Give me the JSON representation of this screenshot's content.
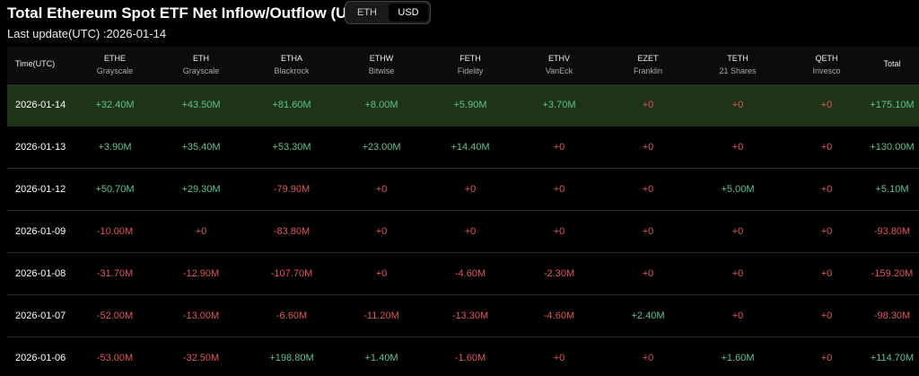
{
  "header": {
    "title": "Total Ethereum Spot ETF Net Inflow/Outflow (USD)",
    "toggle": [
      "ETH",
      "USD"
    ],
    "last_update": "Last update(UTC) :2026-01-14"
  },
  "table": {
    "columns": [
      {
        "ticker": "Time(UTC)"
      },
      {
        "ticker": "ETHE",
        "issuer": "Grayscale"
      },
      {
        "ticker": "ETH",
        "issuer": "Grayscale"
      },
      {
        "ticker": "ETHA",
        "issuer": "Blackrock"
      },
      {
        "ticker": "ETHW",
        "issuer": "Bitwise"
      },
      {
        "ticker": "FETH",
        "issuer": "Fidelity"
      },
      {
        "ticker": "ETHV",
        "issuer": "VanEck"
      },
      {
        "ticker": "EZET",
        "issuer": "Franklin"
      },
      {
        "ticker": "TETH",
        "issuer": "21 Shares"
      },
      {
        "ticker": "QETH",
        "issuer": "Invesco"
      },
      {
        "ticker": "Total"
      }
    ],
    "rows": [
      [
        "2026-01-14",
        "+32.40M",
        "+43.50M",
        "+81.60M",
        "+8.00M",
        "+5.90M",
        "+3.70M",
        "+0",
        "+0",
        "+0",
        "+175.10M"
      ],
      [
        "2026-01-13",
        "+3.90M",
        "+35.40M",
        "+53.30M",
        "+23.00M",
        "+14.40M",
        "+0",
        "+0",
        "+0",
        "+0",
        "+130.00M"
      ],
      [
        "2026-01-12",
        "+50.70M",
        "+29.30M",
        "-79.90M",
        "+0",
        "+0",
        "+0",
        "+0",
        "+5.00M",
        "+0",
        "+5.10M"
      ],
      [
        "2026-01-09",
        "-10.00M",
        "+0",
        "-83.80M",
        "+0",
        "+0",
        "+0",
        "+0",
        "+0",
        "+0",
        "-93.80M"
      ],
      [
        "2026-01-08",
        "-31.70M",
        "-12.90M",
        "-107.70M",
        "+0",
        "-4.60M",
        "-2.30M",
        "+0",
        "+0",
        "+0",
        "-159.20M"
      ],
      [
        "2026-01-07",
        "-52.00M",
        "-13.00M",
        "-6.60M",
        "-11.20M",
        "-13.30M",
        "-4.60M",
        "+2.40M",
        "+0",
        "+0",
        "-98.30M"
      ],
      [
        "2026-01-06",
        "-53.00M",
        "-32.50M",
        "+198.80M",
        "+1.40M",
        "-1.60M",
        "+0",
        "+0",
        "+1.60M",
        "+0",
        "+114.70M"
      ]
    ]
  }
}
